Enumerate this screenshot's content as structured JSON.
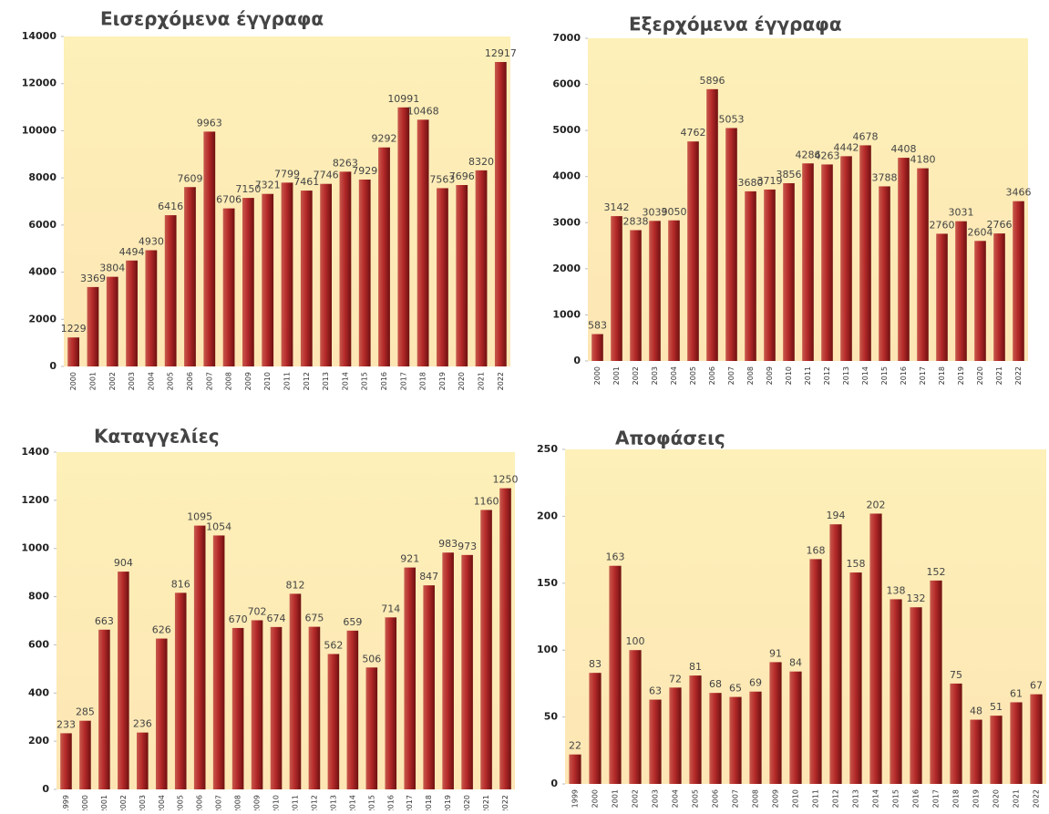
{
  "chart_data": [
    {
      "type": "bar",
      "title": "Εισερχόμενα έγγραφα",
      "categories": [
        "2000",
        "2001",
        "2002",
        "2003",
        "2004",
        "2005",
        "2006",
        "2007",
        "2008",
        "2009",
        "2010",
        "2011",
        "2012",
        "2013",
        "2014",
        "2015",
        "2016",
        "2017",
        "2018",
        "2019",
        "2020",
        "2021",
        "2022"
      ],
      "values": [
        1229,
        3369,
        3804,
        4494,
        4930,
        6416,
        7609,
        9963,
        6706,
        7150,
        7321,
        7799,
        7461,
        7746,
        8263,
        7929,
        9292,
        10991,
        10468,
        7563,
        7696,
        8320,
        12917
      ],
      "color": "#b52a2a",
      "ylim": [
        0,
        14000
      ],
      "yticks": [
        0,
        2000,
        4000,
        6000,
        8000,
        10000,
        12000,
        14000
      ]
    },
    {
      "type": "bar",
      "title": "Εξερχόμενα έγγραφα",
      "categories": [
        "2000",
        "2001",
        "2002",
        "2003",
        "2004",
        "2005",
        "2006",
        "2007",
        "2008",
        "2009",
        "2010",
        "2011",
        "2012",
        "2013",
        "2014",
        "2015",
        "2016",
        "2017",
        "2018",
        "2019",
        "2020",
        "2021",
        "2022"
      ],
      "values": [
        583,
        3142,
        2838,
        3039,
        3050,
        4762,
        5896,
        5053,
        3680,
        3719,
        3856,
        4286,
        4263,
        4442,
        4678,
        3788,
        4408,
        4180,
        2760,
        3031,
        2604,
        2766,
        3466
      ],
      "color": "#b52a2a",
      "ylim": [
        0,
        7000
      ],
      "yticks": [
        0,
        1000,
        2000,
        3000,
        4000,
        5000,
        6000,
        7000
      ]
    },
    {
      "type": "bar",
      "title": "Καταγγελίες",
      "categories": [
        "1999",
        "2000",
        "2001",
        "2002",
        "2003",
        "2004",
        "2005",
        "2006",
        "2007",
        "2008",
        "2009",
        "2010",
        "2011",
        "2012",
        "2013",
        "2014",
        "2015",
        "2016",
        "2017",
        "2018",
        "2019",
        "2020",
        "2021",
        "2022"
      ],
      "values": [
        233,
        285,
        663,
        904,
        236,
        626,
        816,
        1095,
        1054,
        670,
        702,
        674,
        812,
        675,
        562,
        659,
        506,
        714,
        921,
        847,
        983,
        973,
        1160,
        1250
      ],
      "color": "#b52a2a",
      "ylim": [
        0,
        1400
      ],
      "yticks": [
        0,
        200,
        400,
        600,
        800,
        1000,
        1200,
        1400
      ]
    },
    {
      "type": "bar",
      "title": "Αποφάσεις",
      "categories": [
        "1999",
        "2000",
        "2001",
        "2002",
        "2003",
        "2004",
        "2005",
        "2006",
        "2007",
        "2008",
        "2009",
        "2010",
        "2011",
        "2012",
        "2013",
        "2014",
        "2015",
        "2016",
        "2017",
        "2018",
        "2019",
        "2020",
        "2021",
        "2022"
      ],
      "values": [
        22,
        83,
        163,
        100,
        63,
        72,
        81,
        68,
        65,
        69,
        91,
        84,
        168,
        194,
        158,
        202,
        138,
        132,
        152,
        75,
        48,
        51,
        61,
        67
      ],
      "color": "#b52a2a",
      "ylim": [
        0,
        250
      ],
      "yticks": [
        0,
        50,
        100,
        150,
        200,
        250
      ]
    }
  ]
}
